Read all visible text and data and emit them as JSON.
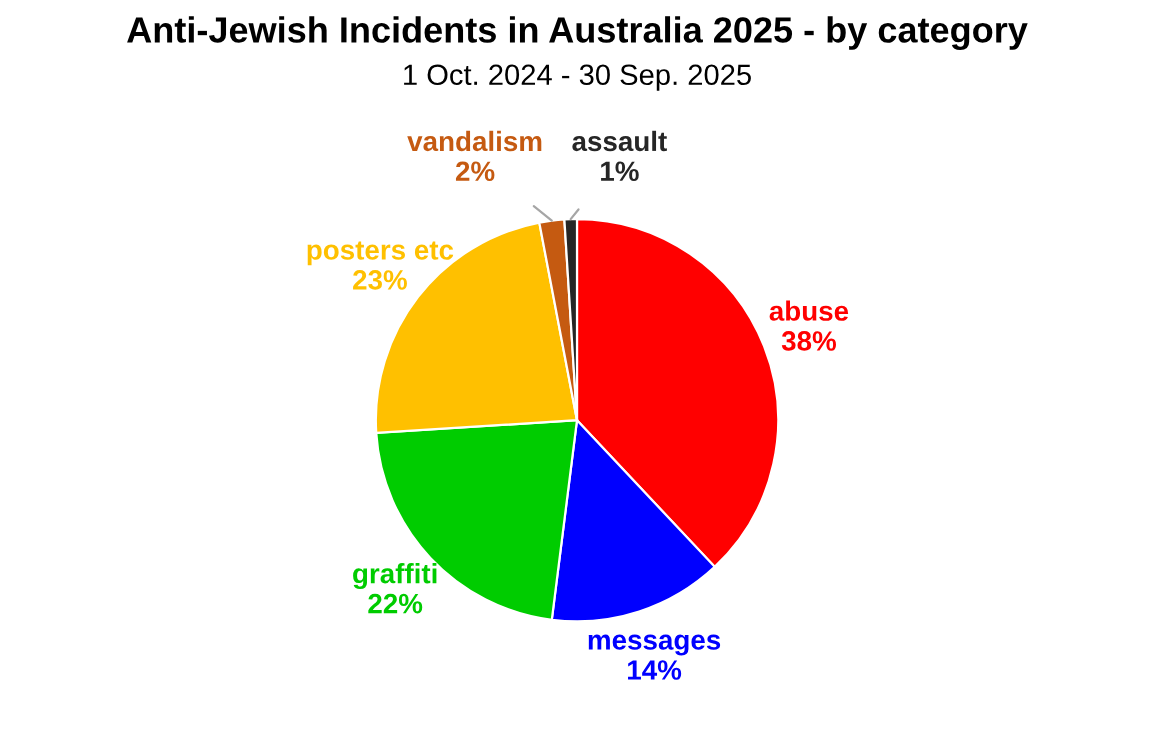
{
  "chart_data": {
    "type": "pie",
    "title": "Anti-Jewish Incidents in Australia 2025 - by category",
    "subtitle": "1 Oct. 2024 - 30 Sep. 2025",
    "categories": [
      "abuse",
      "messages",
      "graffiti",
      "posters etc",
      "vandalism",
      "assault"
    ],
    "values": [
      38,
      14,
      22,
      23,
      2,
      1
    ],
    "colors": [
      "#ff0000",
      "#0000ff",
      "#00cc00",
      "#ffc000",
      "#c55a11",
      "#262626"
    ],
    "value_labels": [
      "38%",
      "14%",
      "22%",
      "23%",
      "2%",
      "1%"
    ]
  }
}
